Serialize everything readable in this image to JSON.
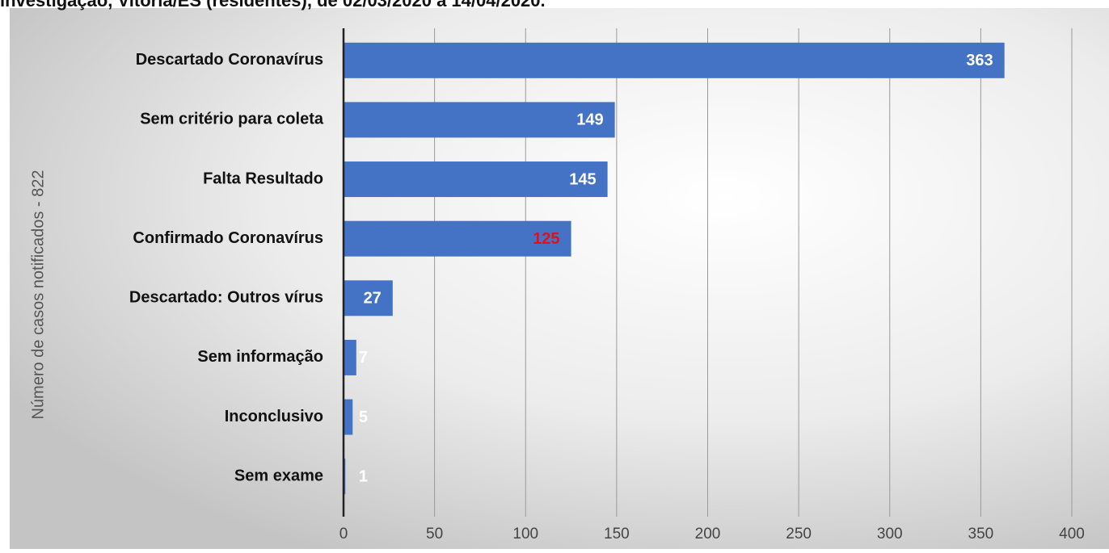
{
  "chart_data": {
    "type": "bar",
    "orientation": "horizontal",
    "title": "investigação, Vitória/ES (residentes), de 02/03/2020 a 14/04/2020.",
    "y_label": "Número de casos notificados - 822",
    "categories": [
      "Descartado Coronavírus",
      "Sem critério para coleta",
      "Falta Resultado",
      "Confirmado Coronavírus",
      "Descartado: Outros vírus",
      "Sem informação",
      "Inconclusivo",
      "Sem exame"
    ],
    "values": [
      363,
      149,
      145,
      125,
      27,
      7,
      5,
      1
    ],
    "color": "#4472c4",
    "value_label_colors": [
      "#ffffff",
      "#ffffff",
      "#ffffff",
      "#e0101e",
      "#ffffff",
      "#ffffff",
      "#ffffff",
      "#ffffff"
    ],
    "xlim": [
      0,
      400
    ],
    "xticks": [
      0,
      50,
      100,
      150,
      200,
      250,
      300,
      350,
      400
    ],
    "grid": true
  }
}
